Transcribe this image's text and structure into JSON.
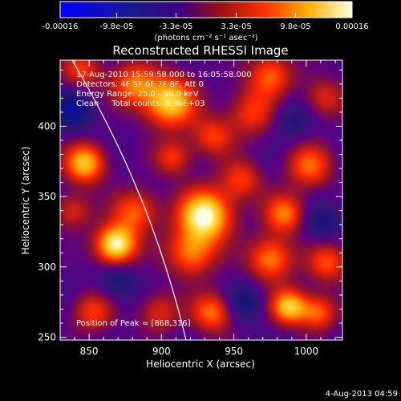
{
  "chart_data": {
    "type": "heatmap",
    "title": "Reconstructed RHESSI Image",
    "xlabel": "Heliocentric X (arcsec)",
    "ylabel": "Heliocentric Y (arcsec)",
    "xlim": [
      830,
      1025
    ],
    "ylim": [
      248,
      447
    ],
    "xticks": [
      850,
      900,
      950,
      1000
    ],
    "yticks": [
      250,
      300,
      350,
      400
    ],
    "colorbar": {
      "tick_labels": [
        "-0.00016",
        "-9.8e-05",
        "-3.3e-05",
        "3.3e-05",
        "9.8e-05",
        "0.00016"
      ],
      "unit_label": "(photons cm⁻² s⁻¹ asec⁻²)",
      "range": [
        -0.00016,
        0.00016
      ]
    },
    "annotations": [
      "17-Aug-2010 15:59:58.000 to 16:05:58.000",
      "Detectors: 4F 5F 6F 7F 8F, Att 0",
      "Energy Range: 25.0 - 50.0 keV",
      "Clean     Total counts: 8.36E+03"
    ],
    "peak_label": "Position of Peak = [868,316]",
    "peak_position": [
      868,
      316
    ],
    "footer_date": "4-Aug-2013 04:59",
    "sources": [
      {
        "x": 930,
        "y": 337,
        "amp": 1.0,
        "sigma": 13
      },
      {
        "x": 868,
        "y": 316,
        "amp": 1.0,
        "sigma": 10
      },
      {
        "x": 905,
        "y": 418,
        "amp": 0.85,
        "sigma": 13
      },
      {
        "x": 962,
        "y": 410,
        "amp": 0.45,
        "sigma": 12
      },
      {
        "x": 847,
        "y": 374,
        "amp": 0.8,
        "sigma": 10
      },
      {
        "x": 920,
        "y": 310,
        "amp": 0.6,
        "sigma": 12
      },
      {
        "x": 882,
        "y": 340,
        "amp": 0.55,
        "sigma": 11
      },
      {
        "x": 955,
        "y": 362,
        "amp": 0.45,
        "sigma": 10
      },
      {
        "x": 935,
        "y": 393,
        "amp": 0.45,
        "sigma": 10
      },
      {
        "x": 1002,
        "y": 372,
        "amp": 0.55,
        "sigma": 11
      },
      {
        "x": 985,
        "y": 338,
        "amp": 0.6,
        "sigma": 10
      },
      {
        "x": 975,
        "y": 306,
        "amp": 0.65,
        "sigma": 11
      },
      {
        "x": 1015,
        "y": 303,
        "amp": 0.5,
        "sigma": 10
      },
      {
        "x": 880,
        "y": 430,
        "amp": 0.55,
        "sigma": 11
      },
      {
        "x": 845,
        "y": 440,
        "amp": 0.45,
        "sigma": 10
      },
      {
        "x": 975,
        "y": 437,
        "amp": 0.55,
        "sigma": 11
      },
      {
        "x": 1012,
        "y": 420,
        "amp": 0.4,
        "sigma": 10
      },
      {
        "x": 990,
        "y": 405,
        "amp": -0.25,
        "sigma": 10
      },
      {
        "x": 988,
        "y": 272,
        "amp": 0.8,
        "sigma": 9
      },
      {
        "x": 935,
        "y": 268,
        "amp": 0.6,
        "sigma": 10
      },
      {
        "x": 898,
        "y": 268,
        "amp": 0.4,
        "sigma": 10
      },
      {
        "x": 852,
        "y": 268,
        "amp": 0.45,
        "sigma": 10
      },
      {
        "x": 1008,
        "y": 268,
        "amp": 0.55,
        "sigma": 9
      },
      {
        "x": 908,
        "y": 378,
        "amp": 0.45,
        "sigma": 9
      },
      {
        "x": 838,
        "y": 340,
        "amp": 0.4,
        "sigma": 9
      },
      {
        "x": 838,
        "y": 412,
        "amp": -0.45,
        "sigma": 10
      },
      {
        "x": 957,
        "y": 275,
        "amp": -0.35,
        "sigma": 9
      },
      {
        "x": 870,
        "y": 290,
        "amp": -0.3,
        "sigma": 9
      },
      {
        "x": 1010,
        "y": 332,
        "amp": -0.3,
        "sigma": 9
      }
    ]
  }
}
